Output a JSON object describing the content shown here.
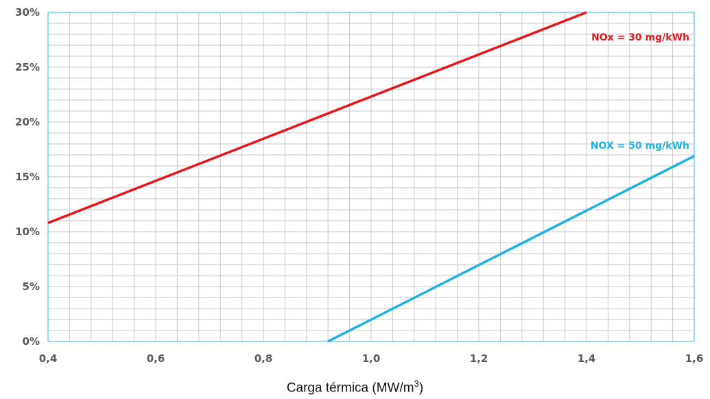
{
  "chart_data": {
    "type": "line",
    "x_axis": {
      "min": 0.4,
      "max": 1.6,
      "ticks": [
        0.4,
        0.6,
        0.8,
        1.0,
        1.2,
        1.4,
        1.6
      ],
      "tick_labels": [
        "0,4",
        "0,6",
        "0,8",
        "1,0",
        "1,2",
        "1,4",
        "1,6"
      ],
      "minor_step": 0.04
    },
    "y_axis": {
      "min": 0,
      "max": 30,
      "ticks": [
        0,
        5,
        10,
        15,
        20,
        25,
        30
      ],
      "tick_labels": [
        "0%",
        "5%",
        "10%",
        "15%",
        "20%",
        "25%",
        "30%"
      ],
      "minor_step": 1
    },
    "xlabel": {
      "text": "Carga térmica  (MW/m",
      "superscript": "3",
      "suffix": ")"
    },
    "ylabel": "",
    "grid": true,
    "series": [
      {
        "name": "NOx = 30 mg/kWh",
        "color": "#e8141a",
        "x": [
          0.4,
          1.4
        ],
        "y": [
          10.8,
          30
        ]
      },
      {
        "name": "NOX = 50 mg/kWh",
        "color": "#1fb0e4",
        "x": [
          0.92,
          1.6
        ],
        "y": [
          0,
          16.9
        ]
      }
    ],
    "colors": {
      "grid": "#c9c9c9",
      "frame": "#55c1e8",
      "tick_text": "#595959"
    }
  }
}
